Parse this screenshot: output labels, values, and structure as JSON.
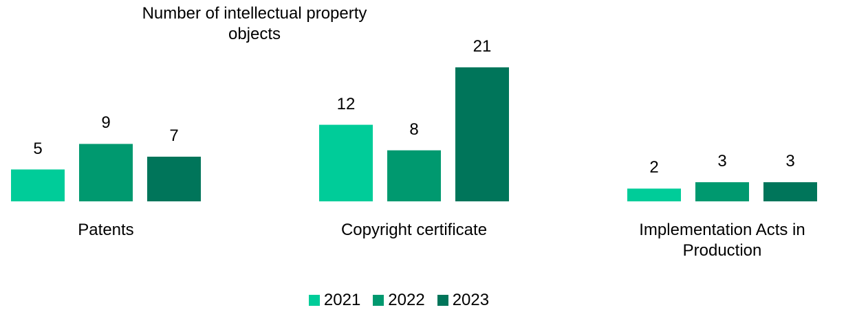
{
  "chart_data": {
    "type": "bar",
    "title": "Number of intellectual property objects",
    "categories": [
      "Patents",
      "Copyright certificate",
      "Implementation Acts in Production"
    ],
    "series": [
      {
        "name": "2021",
        "color": "#00cc99",
        "values": [
          5,
          12,
          2
        ]
      },
      {
        "name": "2022",
        "color": "#00996f",
        "values": [
          9,
          8,
          3
        ]
      },
      {
        "name": "2023",
        "color": "#00755a",
        "values": [
          7,
          21,
          3
        ]
      }
    ],
    "legend": "bottom"
  }
}
